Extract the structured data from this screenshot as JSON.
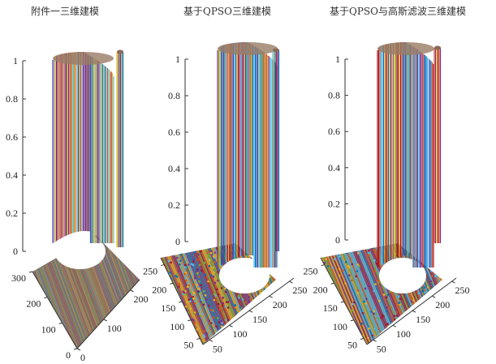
{
  "chart_data": [
    {
      "type": "surface3d",
      "title": "附件一三维建模",
      "z_ticks": [
        "0",
        "0.2",
        "0.4",
        "0.6",
        "0.8",
        "1"
      ],
      "zlim": [
        0,
        1
      ],
      "y_ticks": [
        "0",
        "100",
        "200",
        "300"
      ],
      "x_ticks": [
        "0",
        "100",
        "200"
      ],
      "noise": 0
    },
    {
      "type": "surface3d",
      "title": "基于QPSO三维建模",
      "z_ticks": [
        "0",
        "0.2",
        "0.4",
        "0.6",
        "0.8",
        "1"
      ],
      "zlim": [
        0,
        1
      ],
      "y_ticks": [
        "50",
        "100",
        "150",
        "200",
        "250"
      ],
      "x_ticks": [
        "50",
        "100",
        "150",
        "200",
        "250"
      ],
      "noise": 1
    },
    {
      "type": "surface3d",
      "title": "基于QPSO与高斯滤波三维建模",
      "z_ticks": [
        "0",
        "0.2",
        "0.4",
        "0.6",
        "0.8",
        "1"
      ],
      "zlim": [
        0,
        1
      ],
      "y_ticks": [
        "50",
        "100",
        "150",
        "200",
        "250"
      ],
      "x_ticks": [
        "50",
        "100",
        "150",
        "200",
        "250"
      ],
      "noise": 0.5
    }
  ],
  "palette": [
    "#0072bd",
    "#d95319",
    "#edb120",
    "#7e2f8e",
    "#77ac30",
    "#4dbeee",
    "#a2142f"
  ]
}
